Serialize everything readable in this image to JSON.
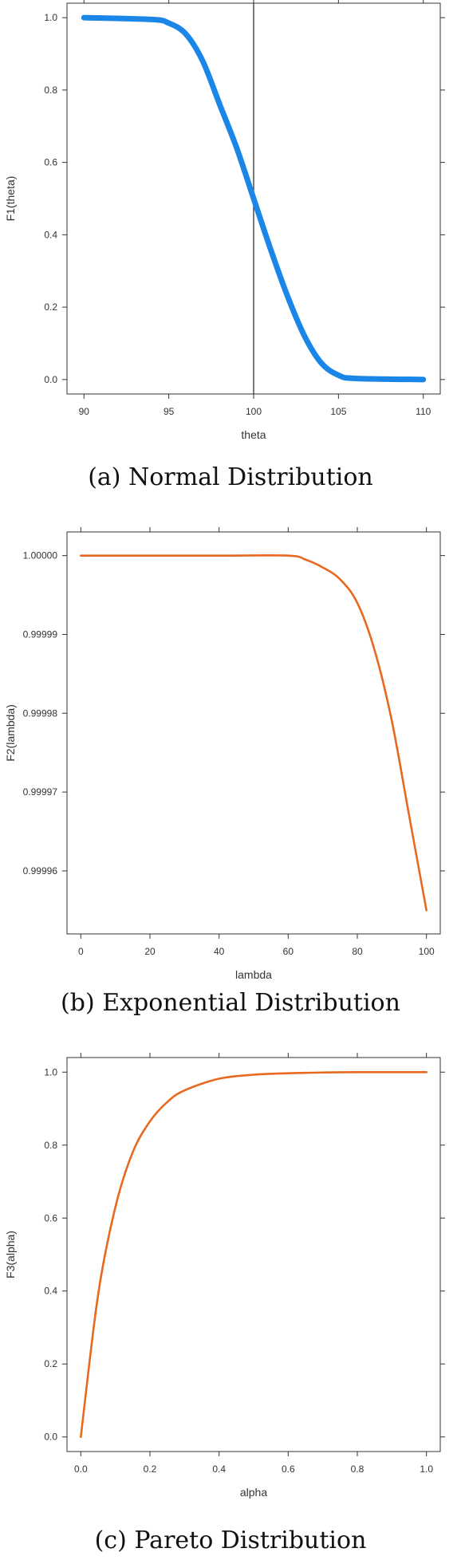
{
  "chart_data": [
    {
      "type": "line",
      "xlabel": "theta",
      "ylabel": "F1(theta)",
      "caption": "(a) Normal Distribution",
      "xlim": [
        89,
        111
      ],
      "ylim": [
        -0.04,
        1.04
      ],
      "xticks": [
        90,
        95,
        100,
        105,
        110
      ],
      "yticks": [
        0.0,
        0.2,
        0.4,
        0.6,
        0.8,
        1.0
      ],
      "xtick_labels": [
        "90",
        "95",
        "100",
        "105",
        "110"
      ],
      "ytick_labels": [
        "0.0",
        "0.2",
        "0.4",
        "0.6",
        "0.8",
        "1.0"
      ],
      "vline_x": 100,
      "color": "#1a86e8",
      "series": [
        {
          "x": [
            90,
            94,
            95,
            96,
            97,
            98,
            99,
            100,
            101,
            102,
            103,
            104,
            105,
            106,
            110
          ],
          "y": [
            1.0,
            0.995,
            0.985,
            0.955,
            0.88,
            0.76,
            0.64,
            0.5,
            0.36,
            0.23,
            0.12,
            0.045,
            0.012,
            0.003,
            0.0
          ]
        }
      ]
    },
    {
      "type": "line",
      "xlabel": "lambda",
      "ylabel": "F2(lambda)",
      "caption": "(b) Exponential Distribution",
      "xlim": [
        -4,
        104
      ],
      "ylim": [
        0.999952,
        1.000003
      ],
      "xticks": [
        0,
        20,
        40,
        60,
        80,
        100
      ],
      "yticks": [
        0.99996,
        0.99997,
        0.99998,
        0.99999,
        1.0
      ],
      "xtick_labels": [
        "0",
        "20",
        "40",
        "60",
        "80",
        "100"
      ],
      "ytick_labels": [
        "0.99996",
        "0.99997",
        "0.99998",
        "0.99999",
        "1.00000"
      ],
      "color": "#e8691e",
      "series": [
        {
          "x": [
            0,
            40,
            60,
            65,
            70,
            75,
            80,
            85,
            90,
            95,
            100
          ],
          "y": [
            1.0,
            1.0,
            1.0,
            0.9999995,
            0.9999985,
            0.999997,
            0.999994,
            0.999988,
            0.999979,
            0.999967,
            0.999955
          ]
        }
      ]
    },
    {
      "type": "line",
      "xlabel": "alpha",
      "ylabel": "F3(alpha)",
      "caption": "(c) Pareto Distribution",
      "xlim": [
        -0.04,
        1.04
      ],
      "ylim": [
        -0.04,
        1.04
      ],
      "xticks": [
        0.0,
        0.2,
        0.4,
        0.6,
        0.8,
        1.0
      ],
      "yticks": [
        0.0,
        0.2,
        0.4,
        0.6,
        0.8,
        1.0
      ],
      "xtick_labels": [
        "0.0",
        "0.2",
        "0.4",
        "0.6",
        "0.8",
        "1.0"
      ],
      "ytick_labels": [
        "0.0",
        "0.2",
        "0.4",
        "0.6",
        "0.8",
        "1.0"
      ],
      "color": "#e8691e",
      "series": [
        {
          "x": [
            0.0,
            0.05,
            0.1,
            0.15,
            0.2,
            0.25,
            0.3,
            0.4,
            0.5,
            0.6,
            0.7,
            0.8,
            1.0
          ],
          "y": [
            0.0,
            0.39,
            0.63,
            0.78,
            0.865,
            0.918,
            0.95,
            0.982,
            0.993,
            0.997,
            0.999,
            1.0,
            1.0
          ]
        }
      ]
    }
  ]
}
